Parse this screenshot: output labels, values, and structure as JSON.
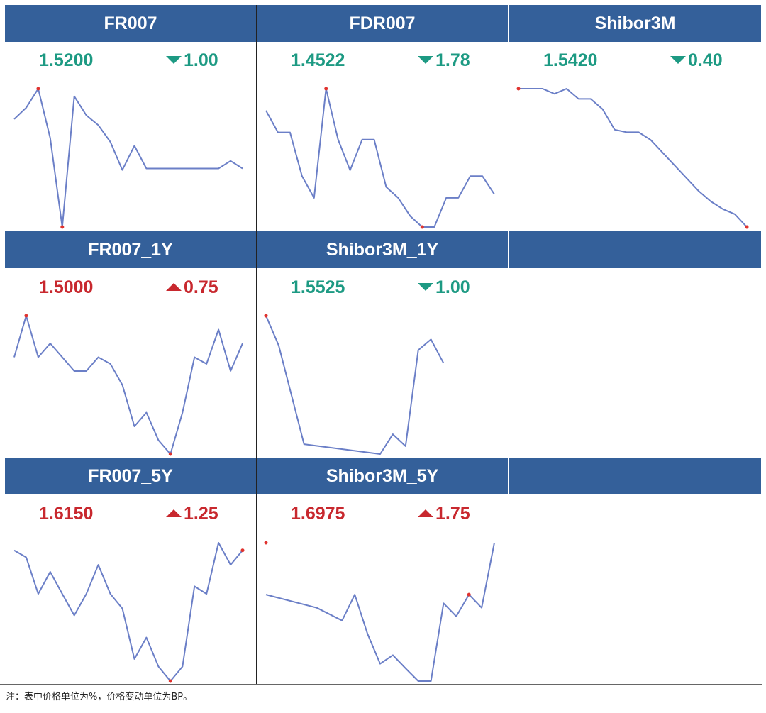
{
  "footnote": "注：表中价格单位为%，价格变动单位为BP。",
  "colors": {
    "header": "#34609a",
    "line": "#6b7fc7",
    "extreme": "#e0332f",
    "up": "#c8282e",
    "down": "#1d9a83"
  },
  "chart_data": [
    {
      "type": "line",
      "title": "FR007",
      "value": "1.5200",
      "change": "1.00",
      "direction": "down",
      "values": [
        1.545,
        1.56,
        1.585,
        1.52,
        1.403,
        1.575,
        1.55,
        1.537,
        1.515,
        1.478,
        1.51,
        1.48,
        1.48,
        1.48,
        1.48,
        1.48,
        1.48,
        1.48,
        1.49,
        1.48
      ],
      "extremes": [
        2,
        4
      ]
    },
    {
      "type": "line",
      "title": "FDR007",
      "value": "1.4522",
      "change": "1.78",
      "direction": "down",
      "values": [
        1.53,
        1.5,
        1.5,
        1.44,
        1.41,
        1.56,
        1.49,
        1.448,
        1.49,
        1.49,
        1.425,
        1.41,
        1.385,
        1.37,
        1.37,
        1.41,
        1.41,
        1.44,
        1.44,
        1.415
      ],
      "extremes": [
        5,
        13
      ]
    },
    {
      "type": "line",
      "title": "Shibor3M",
      "value": "1.5420",
      "change": "0.40",
      "direction": "down",
      "values": [
        1.61,
        1.61,
        1.61,
        1.608,
        1.61,
        1.606,
        1.606,
        1.602,
        1.594,
        1.593,
        1.593,
        1.59,
        1.585,
        1.58,
        1.575,
        1.57,
        1.566,
        1.563,
        1.561,
        1.556
      ],
      "extremes": [
        0,
        19
      ]
    },
    {
      "type": "line",
      "title": "FR007_1Y",
      "value": "1.5000",
      "change": "0.75",
      "direction": "up",
      "values": [
        1.515,
        1.5225,
        1.515,
        1.5175,
        1.515,
        1.5125,
        1.5125,
        1.515,
        1.5138,
        1.51,
        1.5025,
        1.505,
        1.5,
        1.4975,
        1.505,
        1.515,
        1.5138,
        1.52,
        1.5125,
        1.5175
      ],
      "extremes": [
        1,
        13
      ]
    },
    {
      "type": "line",
      "title": "Shibor3M_1Y",
      "value": "1.5525",
      "change": "1.00",
      "direction": "down",
      "values": [
        1.585,
        1.5775,
        1.565,
        1.5525,
        1.55,
        1.555,
        1.552,
        1.5763,
        1.579,
        1.573
      ],
      "x": [
        0,
        1,
        2,
        3,
        9,
        10,
        11,
        12,
        13,
        14
      ],
      "xspan": 18,
      "extremes": [
        0,
        11
      ]
    },
    {
      "type": "line",
      "title": "FR007_5Y",
      "value": "1.6150",
      "change": "1.25",
      "direction": "up",
      "values": [
        1.62,
        1.6188,
        1.6125,
        1.6163,
        1.6125,
        1.6088,
        1.6125,
        1.6175,
        1.6125,
        1.61,
        1.6013,
        1.605,
        1.6,
        1.5975,
        1.6,
        1.6138,
        1.6125,
        1.6213,
        1.6175,
        1.62
      ],
      "extremes": [
        13,
        19
      ]
    },
    {
      "type": "line",
      "title": "Shibor3M_5Y",
      "value": "1.6975",
      "change": "1.75",
      "direction": "up",
      "values": [
        1.6813,
        1.6775,
        1.6738,
        1.6813,
        1.67,
        1.6613,
        1.6638,
        1.66,
        1.6563,
        1.6563,
        1.6788,
        1.675,
        1.6813,
        1.6775,
        1.6963
      ],
      "x": [
        0,
        4,
        6,
        7,
        8,
        9,
        10,
        11,
        12,
        13,
        14,
        15,
        16,
        17,
        18
      ],
      "xspan": 18,
      "extremes": [
        12,
        18
      ]
    }
  ]
}
